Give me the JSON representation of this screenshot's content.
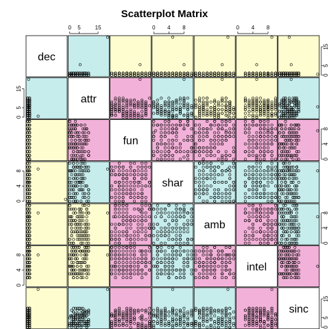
{
  "chart_data": {
    "type": "scatter",
    "title": "Scatterplot Matrix",
    "variables": [
      "dec",
      "attr",
      "fun",
      "shar",
      "amb",
      "intel",
      "sinc"
    ],
    "axis_ranges": {
      "dec": [
        0,
        20
      ],
      "attr": [
        0,
        20
      ],
      "fun": [
        0,
        10
      ],
      "shar": [
        0,
        10
      ],
      "amb": [
        0,
        10
      ],
      "intel": [
        0,
        10
      ],
      "sinc": [
        0,
        20
      ]
    },
    "tick_labels": {
      "dec": [
        0,
        5,
        15
      ],
      "attr": [
        0,
        5,
        15
      ],
      "fun": [
        0,
        4,
        8
      ],
      "shar": [
        0,
        4,
        8
      ],
      "amb": [
        0,
        4,
        8
      ],
      "intel": [
        0,
        4,
        8
      ],
      "sinc": [
        0,
        5,
        15
      ]
    },
    "outliers": {
      "dec": [
        0.5,
        0.5,
        5.5,
        20
      ],
      "attr": [
        0.5,
        5.5,
        20
      ],
      "fun": [
        0.5,
        7.5
      ],
      "shar": [
        0.5,
        8,
        5,
        8.5
      ],
      "amb": [
        8,
        7,
        8.5
      ],
      "intel": [
        8,
        5,
        9
      ],
      "sinc": [
        20,
        6,
        5
      ]
    },
    "panel_colors": {
      "upper": [
        [
          "#c6ecec",
          "#fdfdd0",
          "#fdfdd0",
          "#fdfdd0",
          "#fdfdd0",
          "#fdfdd0"
        ],
        [
          "#f2b1d8",
          "#c6ecec",
          "#fdfdd0",
          "#fdfdd0",
          "#c6ecec"
        ],
        [
          "#f2b1d8",
          "#f2b1d8",
          "#f2b1d8",
          "#f2b1d8"
        ],
        [
          "#c6ecec",
          "#c6ecec",
          "#c6ecec"
        ],
        [
          "#f2b1d8",
          "#c6ecec"
        ],
        [
          "#f2b1d8"
        ]
      ]
    },
    "grid": false,
    "legend": "none"
  }
}
